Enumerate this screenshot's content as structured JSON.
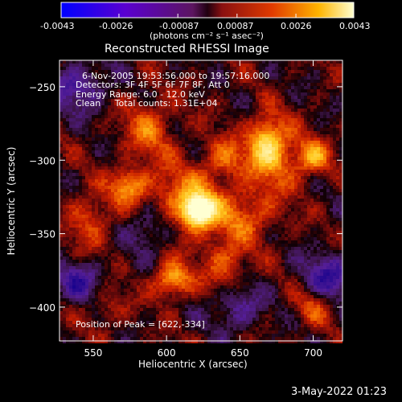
{
  "colorbar": {
    "tick_labels": [
      "-0.0043",
      "-0.0026",
      "-0.00087",
      "0.00087",
      "0.0026",
      "0.0043"
    ],
    "tick_values": [
      -0.0043,
      -0.0026,
      -0.00087,
      0.00087,
      0.0026,
      0.0043
    ],
    "range": [
      -0.0043,
      0.0043
    ],
    "units": "(photons cm⁻² s⁻¹ asec⁻²)",
    "colors": [
      "#0000ff",
      "#6a00cc",
      "#7a2aa0",
      "#9b1c1c",
      "#e23a00",
      "#ffb000",
      "#ffffb0"
    ]
  },
  "chart_data": {
    "type": "heatmap",
    "title": "Reconstructed RHESSI Image",
    "xlabel": "Heliocentric X (arcsec)",
    "ylabel": "Heliocentric Y (arcsec)",
    "xlim": [
      527,
      720
    ],
    "ylim": [
      -423,
      -232
    ],
    "x_ticks": [
      550,
      600,
      650,
      700
    ],
    "x_tick_labels": [
      "550",
      "600",
      "650",
      "700"
    ],
    "y_ticks": [
      -250,
      -300,
      -350,
      -400
    ],
    "y_tick_labels": [
      "−250",
      "−300",
      "−350",
      "−400"
    ],
    "annotations": [
      "6-Nov-2005 19:53:56.000 to 19:57:16.000",
      "Detectors: 3F 4F 5F 6F 7F 8F, Att 0",
      "Energy Range: 6.0 - 12.0 keV",
      "Clean     Total counts: 1.31E+04",
      "Position of Peak = [622,-334]"
    ],
    "peak": {
      "x": 622,
      "y": -334
    },
    "sources": [
      {
        "x": 622,
        "y": -334,
        "amp": 1.0,
        "sx": 7,
        "sy": 7
      },
      {
        "x": 612,
        "y": -330,
        "amp": 0.45,
        "sx": 22,
        "sy": 18
      },
      {
        "x": 668,
        "y": -287,
        "amp": 0.55,
        "sx": 8,
        "sy": 12
      },
      {
        "x": 675,
        "y": -300,
        "amp": 0.35,
        "sx": 14,
        "sy": 16
      },
      {
        "x": 700,
        "y": -298,
        "amp": 0.45,
        "sx": 8,
        "sy": 8
      },
      {
        "x": 604,
        "y": -382,
        "amp": 0.55,
        "sx": 9,
        "sy": 8
      },
      {
        "x": 640,
        "y": -372,
        "amp": 0.35,
        "sx": 10,
        "sy": 12
      },
      {
        "x": 588,
        "y": -278,
        "amp": 0.35,
        "sx": 12,
        "sy": 14
      },
      {
        "x": 574,
        "y": -317,
        "amp": 0.45,
        "sx": 8,
        "sy": 8
      },
      {
        "x": 640,
        "y": -298,
        "amp": 0.3,
        "sx": 10,
        "sy": 10
      },
      {
        "x": 655,
        "y": -338,
        "amp": 0.3,
        "sx": 14,
        "sy": 12
      },
      {
        "x": 548,
        "y": -340,
        "amp": 0.3,
        "sx": 10,
        "sy": 14
      },
      {
        "x": 700,
        "y": -400,
        "amp": 0.3,
        "sx": 9,
        "sy": 9
      },
      {
        "x": 560,
        "y": -400,
        "amp": 0.2,
        "sx": 9,
        "sy": 9
      },
      {
        "x": 590,
        "y": -345,
        "amp": -0.4,
        "sx": 12,
        "sy": 12
      },
      {
        "x": 540,
        "y": -250,
        "amp": -0.35,
        "sx": 14,
        "sy": 12
      },
      {
        "x": 710,
        "y": -380,
        "amp": -0.4,
        "sx": 12,
        "sy": 12
      },
      {
        "x": 648,
        "y": -400,
        "amp": -0.3,
        "sx": 12,
        "sy": 12
      },
      {
        "x": 540,
        "y": -382,
        "amp": -0.35,
        "sx": 12,
        "sy": 10
      }
    ]
  },
  "footer": {
    "date": "3-May-2022 01:23"
  }
}
